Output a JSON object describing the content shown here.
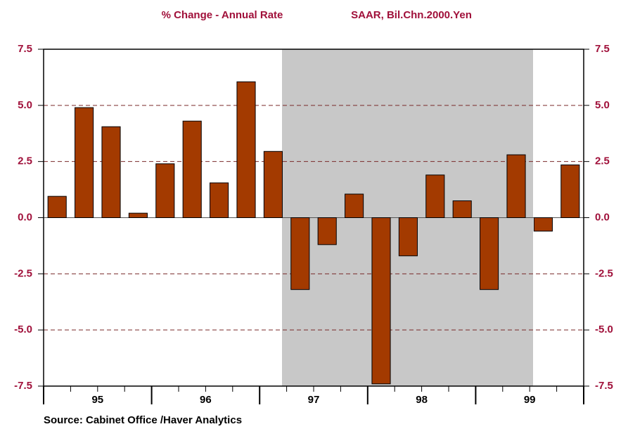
{
  "chart_data": {
    "type": "bar",
    "title": "% Change - Annual Rate",
    "subtitle": "SAAR, Bil.Chn.2000.Yen",
    "source": "Source:  Cabinet Office /Haver Analytics",
    "categories": [
      null,
      null,
      null,
      null,
      null,
      null,
      null,
      null,
      null,
      null,
      null,
      null,
      null,
      null,
      null,
      null,
      null,
      null,
      null,
      null
    ],
    "year_labels": [
      "95",
      "96",
      "97",
      "98",
      "99"
    ],
    "values": [
      0.95,
      4.9,
      4.05,
      0.2,
      2.4,
      4.3,
      1.55,
      6.05,
      2.95,
      -3.2,
      -1.2,
      1.05,
      -7.4,
      -1.7,
      1.9,
      0.75,
      -3.2,
      2.8,
      -0.6,
      2.35
    ],
    "color": "#a33a00",
    "ylim": [
      -7.5,
      7.5
    ],
    "yticks": [
      7.5,
      {
        "value": 5,
        "label": "5.0"
      },
      2.5,
      {
        "value": 0,
        "label": "0.0"
      },
      -2.5,
      {
        "value": -5,
        "label": "-5.0"
      },
      -7.5
    ],
    "grid": true
  }
}
